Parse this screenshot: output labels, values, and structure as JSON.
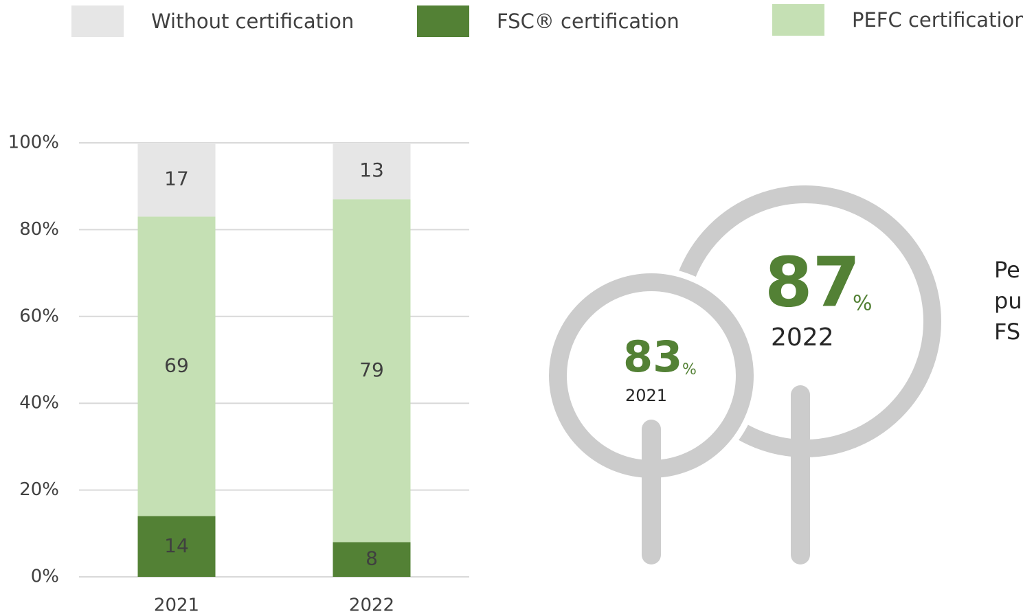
{
  "chart_data": {
    "type": "stacked_bar",
    "categories": [
      "2021",
      "2022"
    ],
    "series": [
      {
        "name": "Without certification",
        "color": "#e6e6e6",
        "values": [
          17,
          13
        ]
      },
      {
        "name": "FSC® certification",
        "color": "#538135",
        "values": [
          14,
          8
        ]
      },
      {
        "name": "PEFC certification",
        "color": "#c5e0b4",
        "values": [
          69,
          79
        ]
      }
    ],
    "ylim": [
      0,
      100
    ],
    "yticks": [
      {
        "value": 0,
        "label": "0%"
      },
      {
        "value": 20,
        "label": "20%"
      },
      {
        "value": 40,
        "label": "40%"
      },
      {
        "value": 60,
        "label": "60%"
      },
      {
        "value": 80,
        "label": "80%"
      },
      {
        "value": 100,
        "label": "100%"
      }
    ],
    "grid": true,
    "legend": "top"
  },
  "infographic": {
    "items": [
      {
        "value": "83",
        "unit": "%",
        "year": "2021"
      },
      {
        "value": "87",
        "unit": "%",
        "year": "2022"
      }
    ],
    "caption_lines": [
      "Pe",
      "pu",
      "FS"
    ]
  }
}
